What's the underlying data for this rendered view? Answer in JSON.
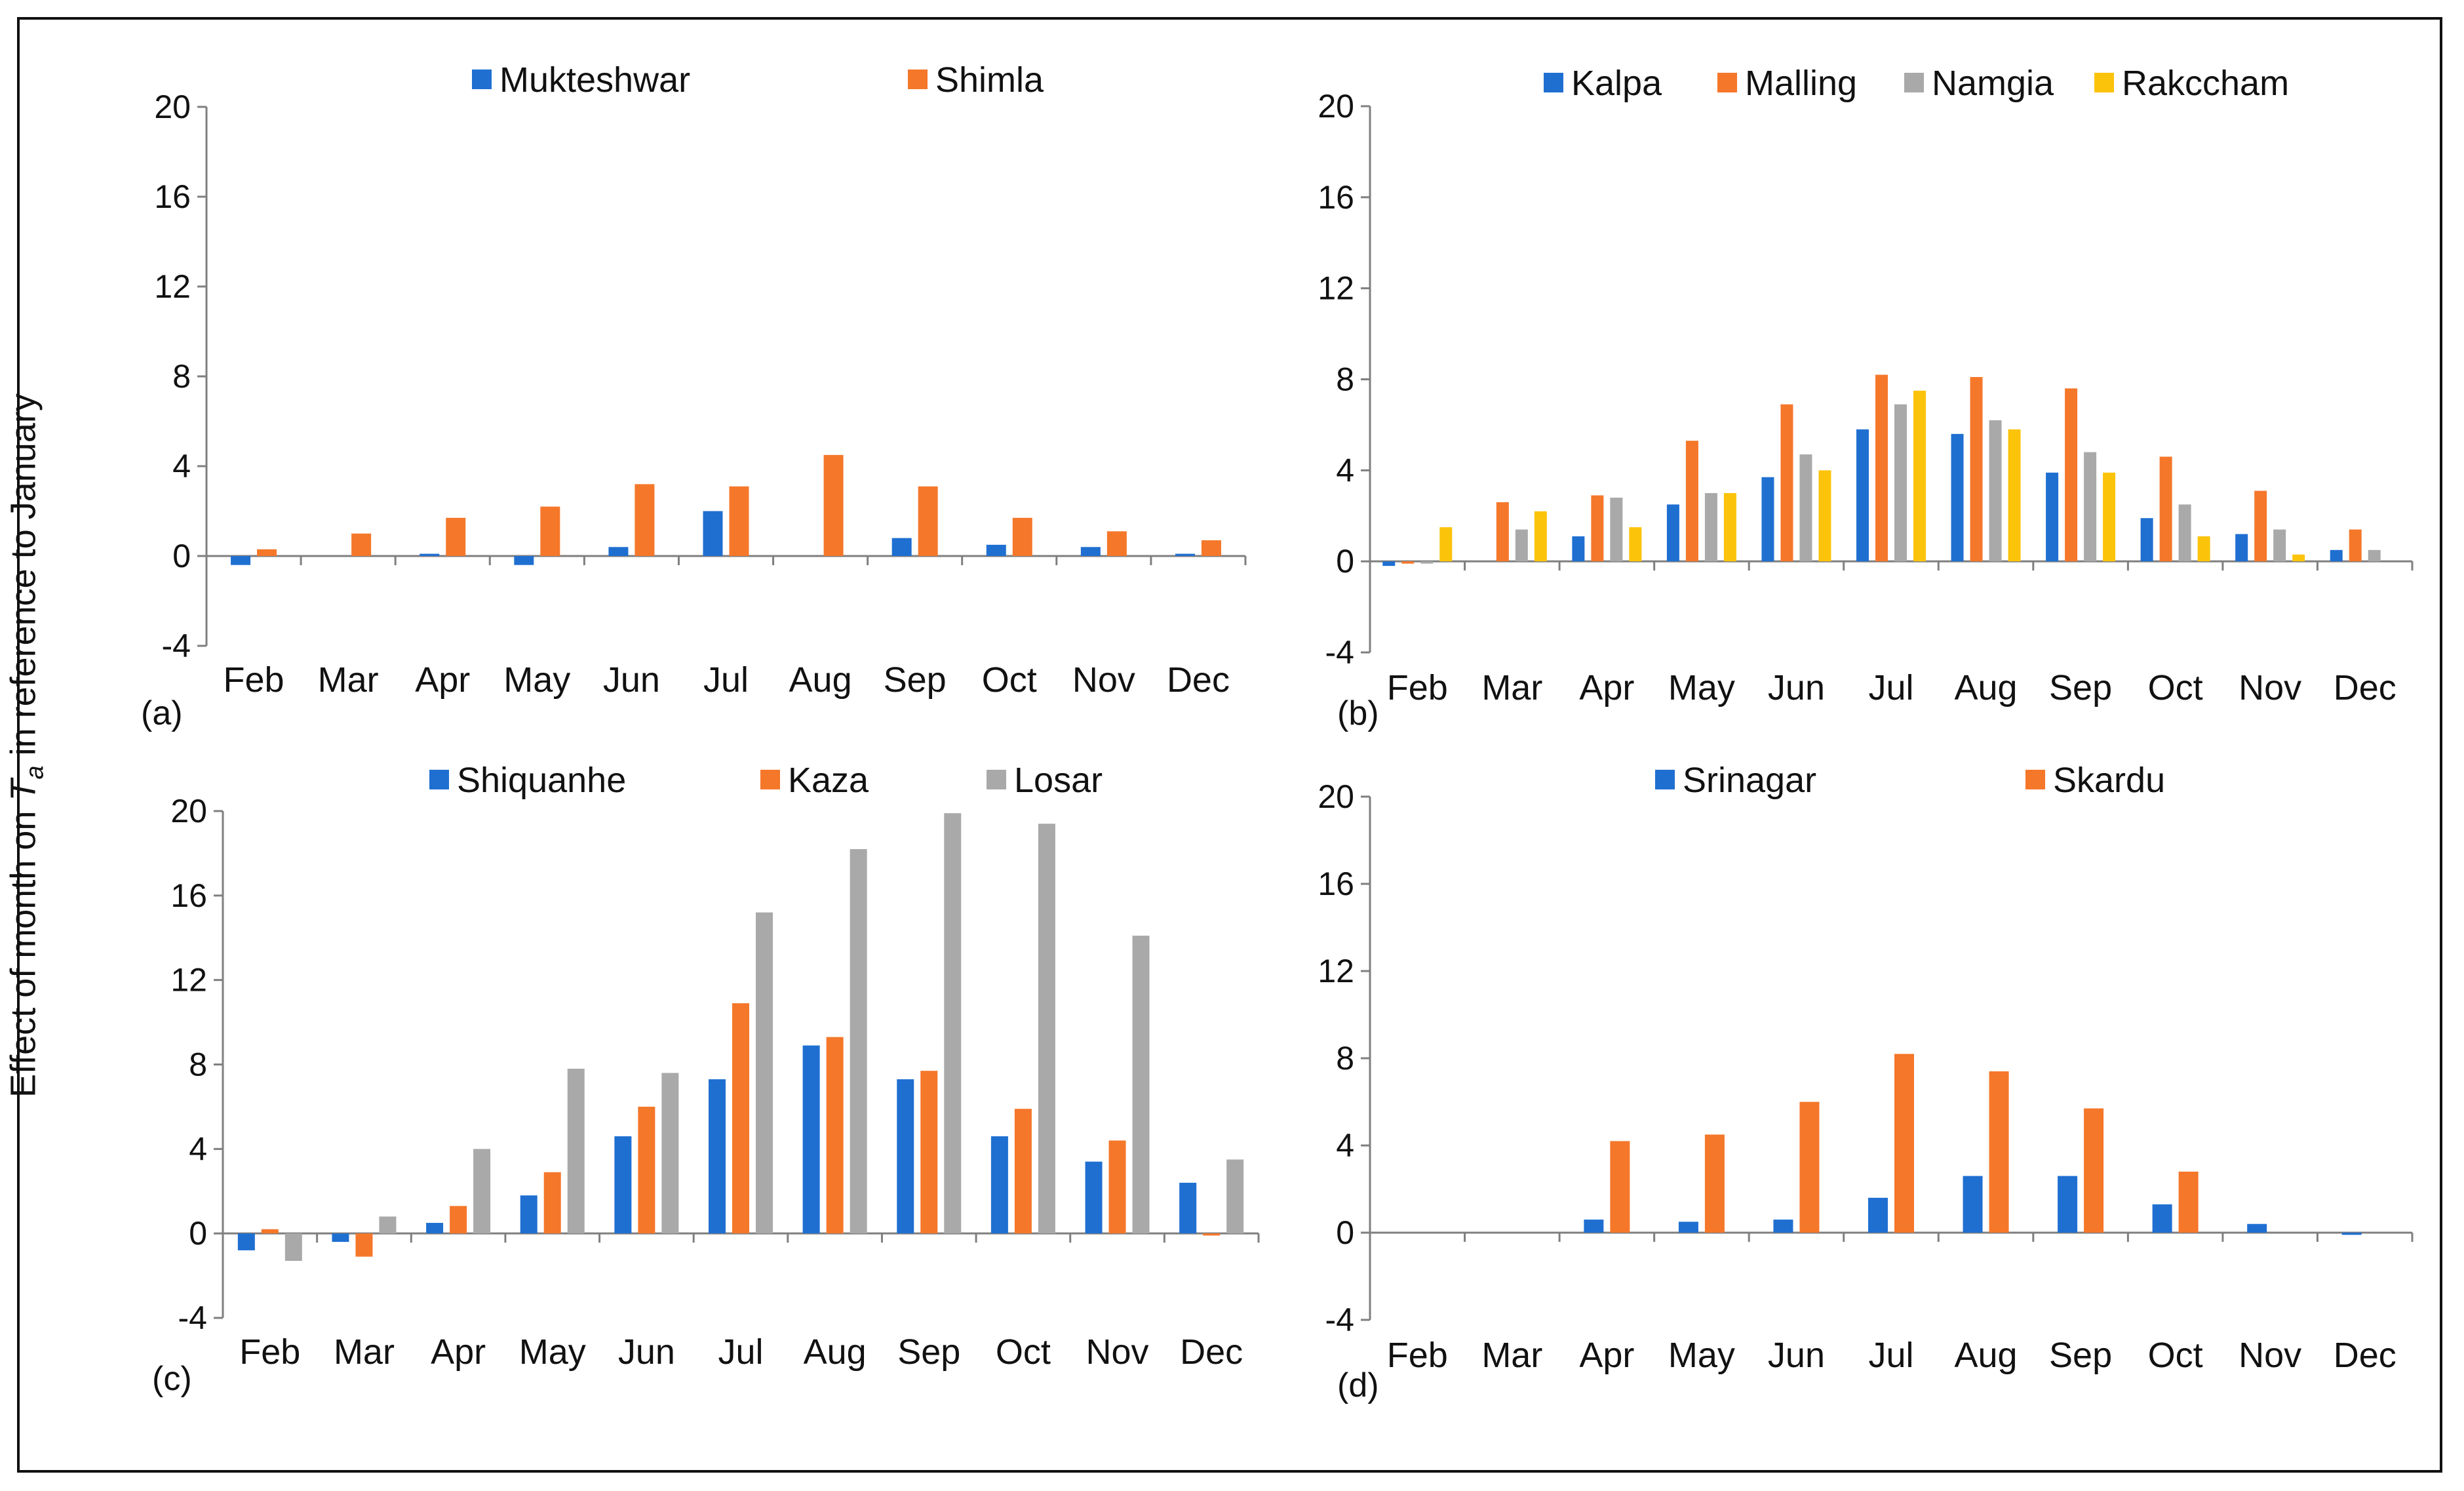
{
  "figure": {
    "ylabel_prefix": "Effect of month on ",
    "ylabel_var": "T",
    "ylabel_sub": "a",
    "ylabel_suffix": " in reference to January"
  },
  "colors": {
    "blue": "#1f6fd1",
    "orange": "#f5772a",
    "gray": "#a9a9a9",
    "yellow": "#fcc30b"
  },
  "chart_data": [
    {
      "id": "a",
      "type": "bar",
      "panel_label": "(a)",
      "categories": [
        "Feb",
        "Mar",
        "Apr",
        "May",
        "Jun",
        "Jul",
        "Aug",
        "Sep",
        "Oct",
        "Nov",
        "Dec"
      ],
      "yticks": [
        "20",
        "16",
        "12",
        "8",
        "4",
        "0",
        "-4"
      ],
      "ylim": [
        -4,
        20
      ],
      "series": [
        {
          "name": "Mukteshwar",
          "color": "#1f6fd1",
          "values": [
            -0.4,
            0,
            0.1,
            -0.4,
            0.4,
            2.0,
            0,
            0.8,
            0.5,
            0.4,
            0.1
          ]
        },
        {
          "name": "Shimla",
          "color": "#f5772a",
          "values": [
            0.3,
            1.0,
            1.7,
            2.2,
            3.2,
            3.1,
            4.5,
            3.1,
            1.7,
            1.1,
            0.7
          ]
        }
      ]
    },
    {
      "id": "b",
      "type": "bar",
      "panel_label": "(b)",
      "categories": [
        "Feb",
        "Mar",
        "Apr",
        "May",
        "Jun",
        "Jul",
        "Aug",
        "Sep",
        "Oct",
        "Nov",
        "Dec"
      ],
      "yticks": [
        "20",
        "16",
        "12",
        "8",
        "4",
        "0",
        "-4"
      ],
      "ylim": [
        -4,
        20
      ],
      "series": [
        {
          "name": "Kalpa",
          "color": "#1f6fd1",
          "values": [
            -0.2,
            0,
            1.1,
            2.5,
            3.7,
            5.8,
            5.6,
            3.9,
            1.9,
            1.2,
            0.5
          ]
        },
        {
          "name": "Malling",
          "color": "#f5772a",
          "values": [
            -0.1,
            2.6,
            2.9,
            5.3,
            6.9,
            8.2,
            8.1,
            7.6,
            4.6,
            3.1,
            1.4
          ]
        },
        {
          "name": "Namgia",
          "color": "#a9a9a9",
          "values": [
            -0.1,
            1.4,
            2.8,
            3.0,
            4.7,
            6.9,
            6.2,
            4.8,
            2.5,
            1.4,
            0.5
          ]
        },
        {
          "name": "Rakccham",
          "color": "#fcc30b",
          "values": [
            1.5,
            2.2,
            1.5,
            3.0,
            4.0,
            7.5,
            5.8,
            3.9,
            1.1,
            0.3,
            0
          ]
        }
      ]
    },
    {
      "id": "c",
      "type": "bar",
      "panel_label": "(c)",
      "categories": [
        "Feb",
        "Mar",
        "Apr",
        "May",
        "Jun",
        "Jul",
        "Aug",
        "Sep",
        "Oct",
        "Nov",
        "Dec"
      ],
      "yticks": [
        "20",
        "16",
        "12",
        "8",
        "4",
        "0",
        "-4"
      ],
      "ylim": [
        -4,
        20
      ],
      "series": [
        {
          "name": "Shiquanhe",
          "color": "#1f6fd1",
          "values": [
            -0.8,
            -0.4,
            0.5,
            1.8,
            4.6,
            7.3,
            8.9,
            7.3,
            4.6,
            3.4,
            2.4
          ]
        },
        {
          "name": "Kaza",
          "color": "#f5772a",
          "values": [
            0.2,
            -1.1,
            1.3,
            2.9,
            6.0,
            10.9,
            9.3,
            7.7,
            5.9,
            4.4,
            -0.1
          ]
        },
        {
          "name": "Losar",
          "color": "#a9a9a9",
          "values": [
            -1.3,
            0.8,
            4.0,
            7.8,
            7.6,
            15.2,
            18.2,
            19.9,
            19.4,
            14.1,
            3.5
          ]
        }
      ]
    },
    {
      "id": "d",
      "type": "bar",
      "panel_label": "(d)",
      "categories": [
        "Feb",
        "Mar",
        "Apr",
        "May",
        "Jun",
        "Jul",
        "Aug",
        "Sep",
        "Oct",
        "Nov",
        "Dec"
      ],
      "yticks": [
        "20",
        "16",
        "12",
        "8",
        "4",
        "0",
        "-4"
      ],
      "ylim": [
        -4,
        20
      ],
      "series": [
        {
          "name": "Srinagar",
          "color": "#1f6fd1",
          "values": [
            0,
            0,
            0.6,
            0.5,
            0.6,
            1.6,
            2.6,
            2.6,
            1.3,
            0.4,
            -0.1
          ]
        },
        {
          "name": "Skardu",
          "color": "#f5772a",
          "values": [
            0,
            0,
            4.2,
            4.5,
            6.0,
            8.2,
            7.4,
            5.7,
            2.8,
            0,
            0
          ]
        }
      ]
    }
  ]
}
